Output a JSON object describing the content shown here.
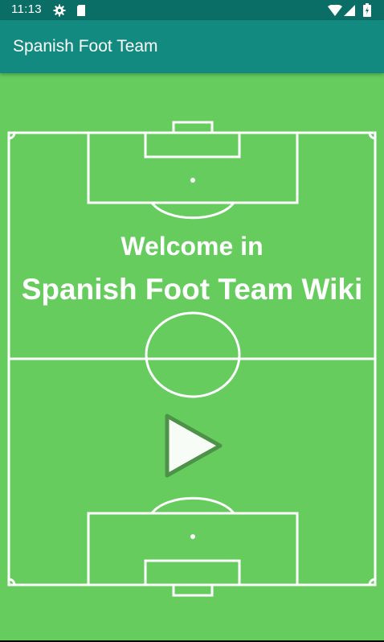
{
  "status_bar": {
    "time": "11:13",
    "icons": [
      "settings-icon",
      "sd-card-icon",
      "wifi-icon",
      "signal-icon",
      "battery-icon"
    ]
  },
  "app_bar": {
    "title": "Spanish Foot Team"
  },
  "main": {
    "welcome_line1": "Welcome in",
    "welcome_line2": "Spanish Foot Team Wiki",
    "play_icon": "play-icon"
  },
  "colors": {
    "status_bar": "#0b6e66",
    "app_bar": "#128a80",
    "pitch_green": "#66cc5e",
    "lines": "#ffffff"
  }
}
